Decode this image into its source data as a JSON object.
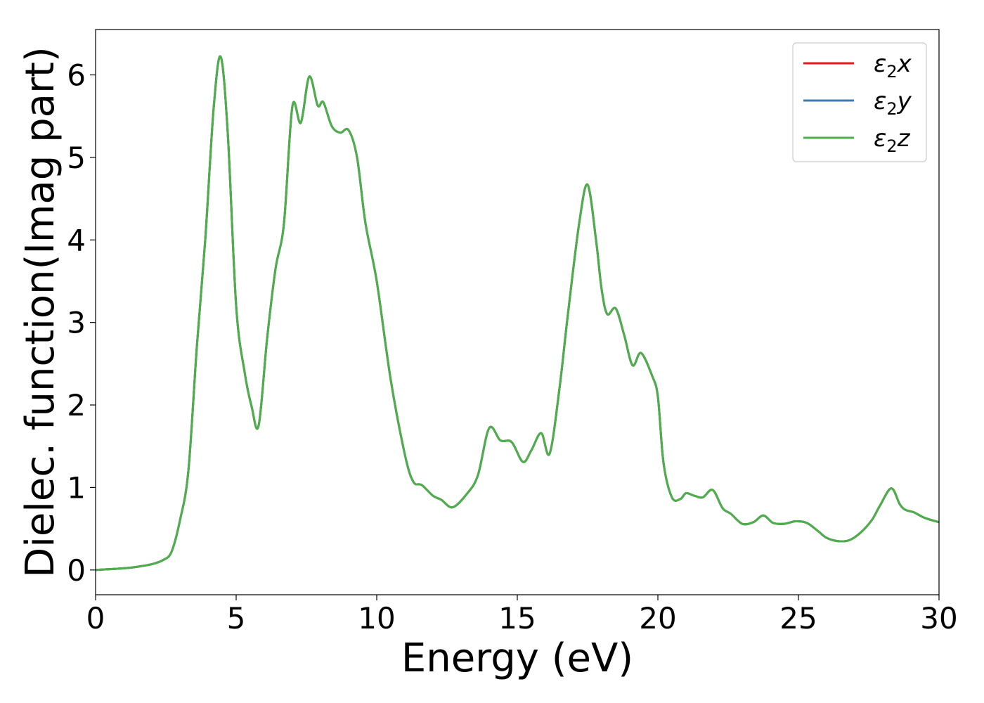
{
  "chart_data": {
    "type": "line",
    "title": "",
    "xlabel": "Energy (eV)",
    "ylabel": "Dielec. function(Imag part)",
    "xlim": [
      0,
      30
    ],
    "ylim": [
      -0.3,
      6.55
    ],
    "x_ticks": [
      "0",
      "5",
      "10",
      "15",
      "20",
      "25",
      "30"
    ],
    "y_ticks": [
      "0",
      "1",
      "2",
      "3",
      "4",
      "5",
      "6"
    ],
    "grid": false,
    "legend_position": "top-right",
    "x": [
      0.0,
      0.5,
      1.0,
      1.5,
      2.0,
      2.4,
      2.7,
      3.0,
      3.3,
      3.6,
      3.9,
      4.2,
      4.45,
      4.7,
      5.0,
      5.3,
      5.55,
      5.8,
      6.1,
      6.4,
      6.7,
      7.0,
      7.3,
      7.6,
      7.9,
      8.1,
      8.4,
      8.7,
      9.0,
      9.3,
      9.6,
      10.0,
      10.5,
      11.0,
      11.3,
      11.6,
      12.0,
      12.3,
      12.7,
      13.2,
      13.6,
      14.0,
      14.4,
      14.8,
      15.2,
      15.5,
      15.85,
      16.15,
      16.5,
      16.8,
      17.2,
      17.5,
      17.8,
      18.0,
      18.2,
      18.5,
      18.8,
      19.1,
      19.4,
      19.8,
      20.0,
      20.2,
      20.5,
      20.8,
      21.0,
      21.3,
      21.6,
      21.95,
      22.3,
      22.6,
      23.0,
      23.4,
      23.75,
      24.1,
      24.5,
      24.9,
      25.3,
      25.7,
      26.0,
      26.4,
      26.8,
      27.2,
      27.6,
      27.9,
      28.3,
      28.6,
      28.8,
      29.1,
      29.5,
      30.0
    ],
    "series": [
      {
        "name": "$\\epsilon_2 x$",
        "color": "#e41a1c",
        "y": [
          0.0,
          0.01,
          0.02,
          0.04,
          0.07,
          0.12,
          0.22,
          0.6,
          1.2,
          2.7,
          4.0,
          5.6,
          6.22,
          5.3,
          3.2,
          2.4,
          1.98,
          1.75,
          2.8,
          3.65,
          4.2,
          5.62,
          5.42,
          5.98,
          5.63,
          5.67,
          5.38,
          5.3,
          5.33,
          5.0,
          4.2,
          3.5,
          2.3,
          1.4,
          1.07,
          1.03,
          0.9,
          0.85,
          0.76,
          0.92,
          1.15,
          1.72,
          1.57,
          1.55,
          1.31,
          1.45,
          1.66,
          1.41,
          2.2,
          3.1,
          4.2,
          4.67,
          4.0,
          3.4,
          3.1,
          3.17,
          2.85,
          2.48,
          2.63,
          2.35,
          2.1,
          1.3,
          0.88,
          0.86,
          0.93,
          0.9,
          0.88,
          0.97,
          0.75,
          0.68,
          0.56,
          0.58,
          0.66,
          0.57,
          0.56,
          0.59,
          0.57,
          0.47,
          0.39,
          0.35,
          0.36,
          0.45,
          0.6,
          0.78,
          0.99,
          0.8,
          0.73,
          0.7,
          0.63,
          0.58
        ]
      },
      {
        "name": "$\\epsilon_2 y$",
        "color": "#377eb8",
        "y": [
          0.0,
          0.01,
          0.02,
          0.04,
          0.07,
          0.12,
          0.22,
          0.6,
          1.2,
          2.7,
          4.0,
          5.6,
          6.22,
          5.3,
          3.2,
          2.4,
          1.98,
          1.75,
          2.8,
          3.65,
          4.2,
          5.62,
          5.42,
          5.98,
          5.63,
          5.67,
          5.38,
          5.3,
          5.33,
          5.0,
          4.2,
          3.5,
          2.3,
          1.4,
          1.07,
          1.03,
          0.9,
          0.85,
          0.76,
          0.92,
          1.15,
          1.72,
          1.57,
          1.55,
          1.31,
          1.45,
          1.66,
          1.41,
          2.2,
          3.1,
          4.2,
          4.67,
          4.0,
          3.4,
          3.1,
          3.17,
          2.85,
          2.48,
          2.63,
          2.35,
          2.1,
          1.3,
          0.88,
          0.86,
          0.93,
          0.9,
          0.88,
          0.97,
          0.75,
          0.68,
          0.56,
          0.58,
          0.66,
          0.57,
          0.56,
          0.59,
          0.57,
          0.47,
          0.39,
          0.35,
          0.36,
          0.45,
          0.6,
          0.78,
          0.99,
          0.8,
          0.73,
          0.7,
          0.63,
          0.58
        ]
      },
      {
        "name": "$\\epsilon_2 z$",
        "color": "#4daf4a",
        "y": [
          0.0,
          0.01,
          0.02,
          0.04,
          0.07,
          0.12,
          0.22,
          0.6,
          1.2,
          2.7,
          4.0,
          5.6,
          6.22,
          5.3,
          3.2,
          2.4,
          1.98,
          1.75,
          2.8,
          3.65,
          4.2,
          5.62,
          5.42,
          5.98,
          5.63,
          5.67,
          5.38,
          5.3,
          5.33,
          5.0,
          4.2,
          3.5,
          2.3,
          1.4,
          1.07,
          1.03,
          0.9,
          0.85,
          0.76,
          0.92,
          1.15,
          1.72,
          1.57,
          1.55,
          1.31,
          1.45,
          1.66,
          1.41,
          2.2,
          3.1,
          4.2,
          4.67,
          4.0,
          3.4,
          3.1,
          3.17,
          2.85,
          2.48,
          2.63,
          2.35,
          2.1,
          1.3,
          0.88,
          0.86,
          0.93,
          0.9,
          0.88,
          0.97,
          0.75,
          0.68,
          0.56,
          0.58,
          0.66,
          0.57,
          0.56,
          0.59,
          0.57,
          0.47,
          0.39,
          0.35,
          0.36,
          0.45,
          0.6,
          0.78,
          0.99,
          0.8,
          0.73,
          0.7,
          0.63,
          0.58
        ]
      }
    ]
  }
}
